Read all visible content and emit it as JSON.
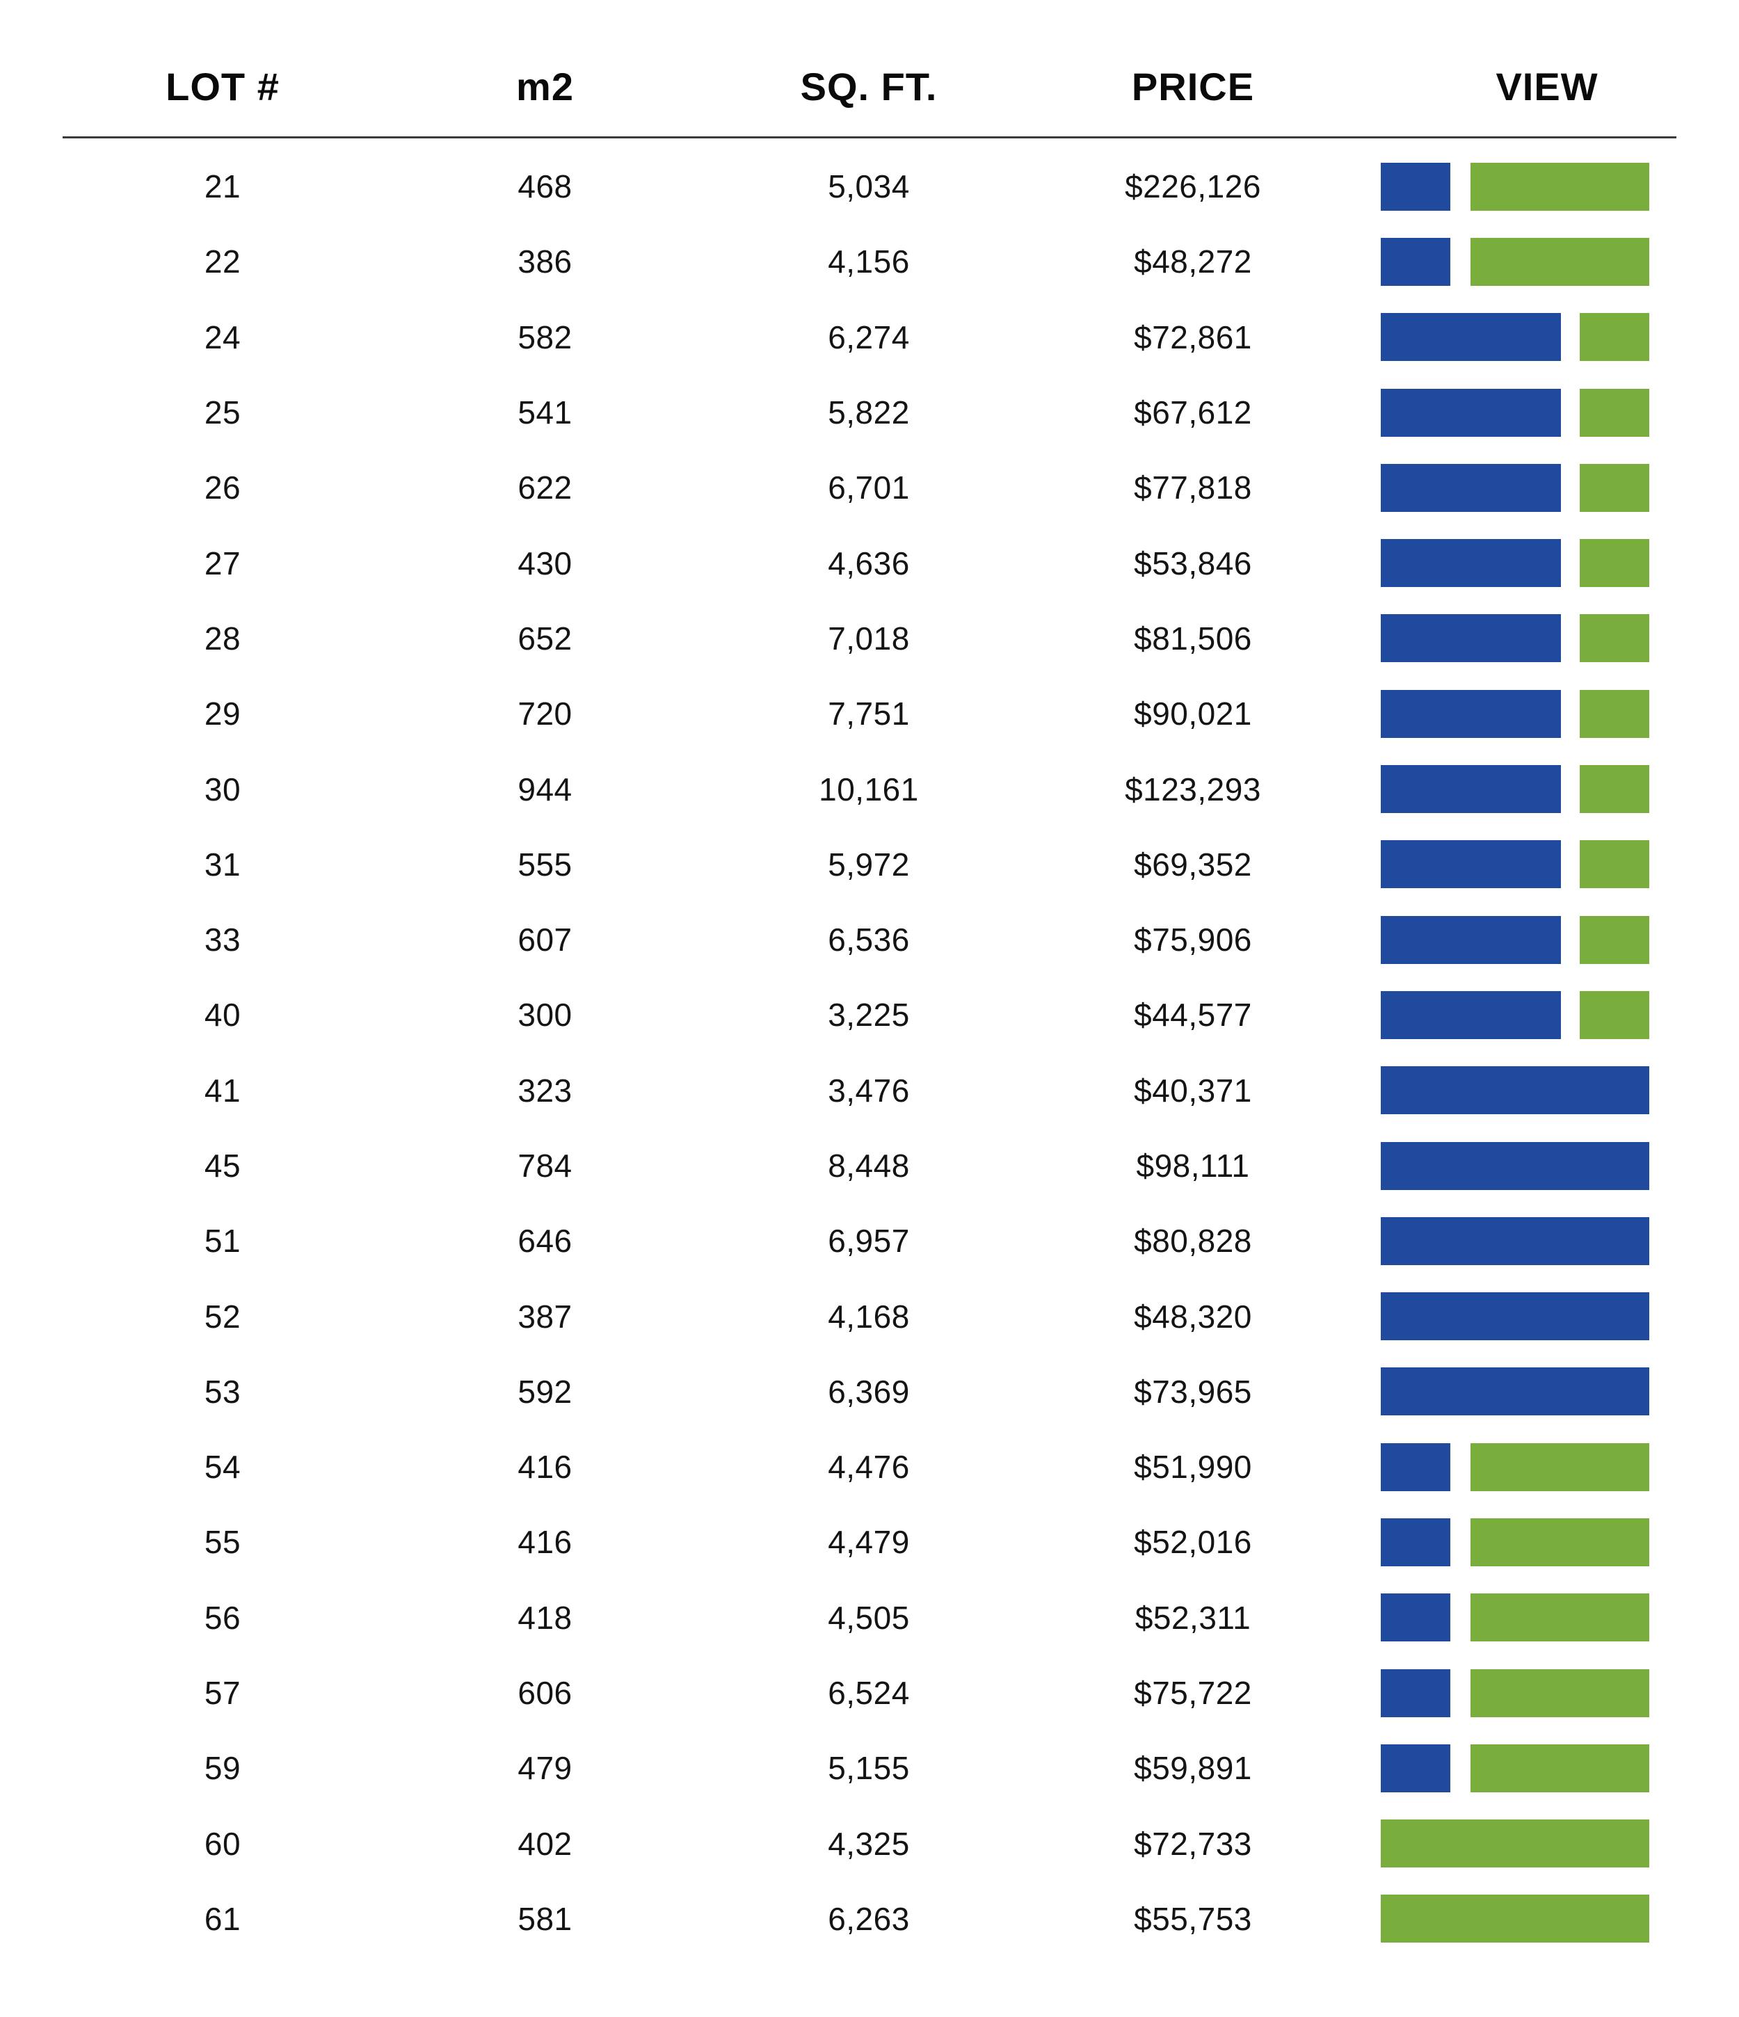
{
  "colors": {
    "blue": "#1f4a9e",
    "green": "#79ad3c",
    "text": "#141414",
    "rule": "#3c3c3c",
    "background": "#ffffff"
  },
  "view_patterns": {
    "small_blue_large_green": [
      {
        "color": "blue",
        "width_pct": 26
      },
      {
        "color": "green",
        "width_pct": 66.5
      }
    ],
    "large_blue_small_green": [
      {
        "color": "blue",
        "width_pct": 67
      },
      {
        "color": "green",
        "width_pct": 26
      }
    ],
    "full_blue": [
      {
        "color": "blue",
        "width_pct": 100
      }
    ],
    "full_green": [
      {
        "color": "green",
        "width_pct": 100
      }
    ]
  },
  "chart_data": {
    "type": "table",
    "columns": [
      "LOT #",
      "m2",
      "SQ. FT.",
      "PRICE",
      "VIEW"
    ],
    "view_column_encoding": "horizontal color bars: blue segment and/or green segment per lot",
    "rows": [
      {
        "lot": "21",
        "m2": "468",
        "sqft": "5,034",
        "price": "$226,126",
        "view": "small_blue_large_green"
      },
      {
        "lot": "22",
        "m2": "386",
        "sqft": "4,156",
        "price": "$48,272",
        "view": "small_blue_large_green"
      },
      {
        "lot": "24",
        "m2": "582",
        "sqft": "6,274",
        "price": "$72,861",
        "view": "large_blue_small_green"
      },
      {
        "lot": "25",
        "m2": "541",
        "sqft": "5,822",
        "price": "$67,612",
        "view": "large_blue_small_green"
      },
      {
        "lot": "26",
        "m2": "622",
        "sqft": "6,701",
        "price": "$77,818",
        "view": "large_blue_small_green"
      },
      {
        "lot": "27",
        "m2": "430",
        "sqft": "4,636",
        "price": "$53,846",
        "view": "large_blue_small_green"
      },
      {
        "lot": "28",
        "m2": "652",
        "sqft": "7,018",
        "price": "$81,506",
        "view": "large_blue_small_green"
      },
      {
        "lot": "29",
        "m2": "720",
        "sqft": "7,751",
        "price": "$90,021",
        "view": "large_blue_small_green"
      },
      {
        "lot": "30",
        "m2": "944",
        "sqft": "10,161",
        "price": "$123,293",
        "view": "large_blue_small_green"
      },
      {
        "lot": "31",
        "m2": "555",
        "sqft": "5,972",
        "price": "$69,352",
        "view": "large_blue_small_green"
      },
      {
        "lot": "33",
        "m2": "607",
        "sqft": "6,536",
        "price": "$75,906",
        "view": "large_blue_small_green"
      },
      {
        "lot": "40",
        "m2": "300",
        "sqft": "3,225",
        "price": "$44,577",
        "view": "large_blue_small_green"
      },
      {
        "lot": "41",
        "m2": "323",
        "sqft": "3,476",
        "price": "$40,371",
        "view": "full_blue"
      },
      {
        "lot": "45",
        "m2": "784",
        "sqft": "8,448",
        "price": "$98,111",
        "view": "full_blue"
      },
      {
        "lot": "51",
        "m2": "646",
        "sqft": "6,957",
        "price": "$80,828",
        "view": "full_blue"
      },
      {
        "lot": "52",
        "m2": "387",
        "sqft": "4,168",
        "price": "$48,320",
        "view": "full_blue"
      },
      {
        "lot": "53",
        "m2": "592",
        "sqft": "6,369",
        "price": "$73,965",
        "view": "full_blue"
      },
      {
        "lot": "54",
        "m2": "416",
        "sqft": "4,476",
        "price": "$51,990",
        "view": "small_blue_large_green"
      },
      {
        "lot": "55",
        "m2": "416",
        "sqft": "4,479",
        "price": "$52,016",
        "view": "small_blue_large_green"
      },
      {
        "lot": "56",
        "m2": "418",
        "sqft": "4,505",
        "price": "$52,311",
        "view": "small_blue_large_green"
      },
      {
        "lot": "57",
        "m2": "606",
        "sqft": "6,524",
        "price": "$75,722",
        "view": "small_blue_large_green"
      },
      {
        "lot": "59",
        "m2": "479",
        "sqft": "5,155",
        "price": "$59,891",
        "view": "small_blue_large_green"
      },
      {
        "lot": "60",
        "m2": "402",
        "sqft": "4,325",
        "price": "$72,733",
        "view": "full_green"
      },
      {
        "lot": "61",
        "m2": "581",
        "sqft": "6,263",
        "price": "$55,753",
        "view": "full_green"
      }
    ]
  }
}
